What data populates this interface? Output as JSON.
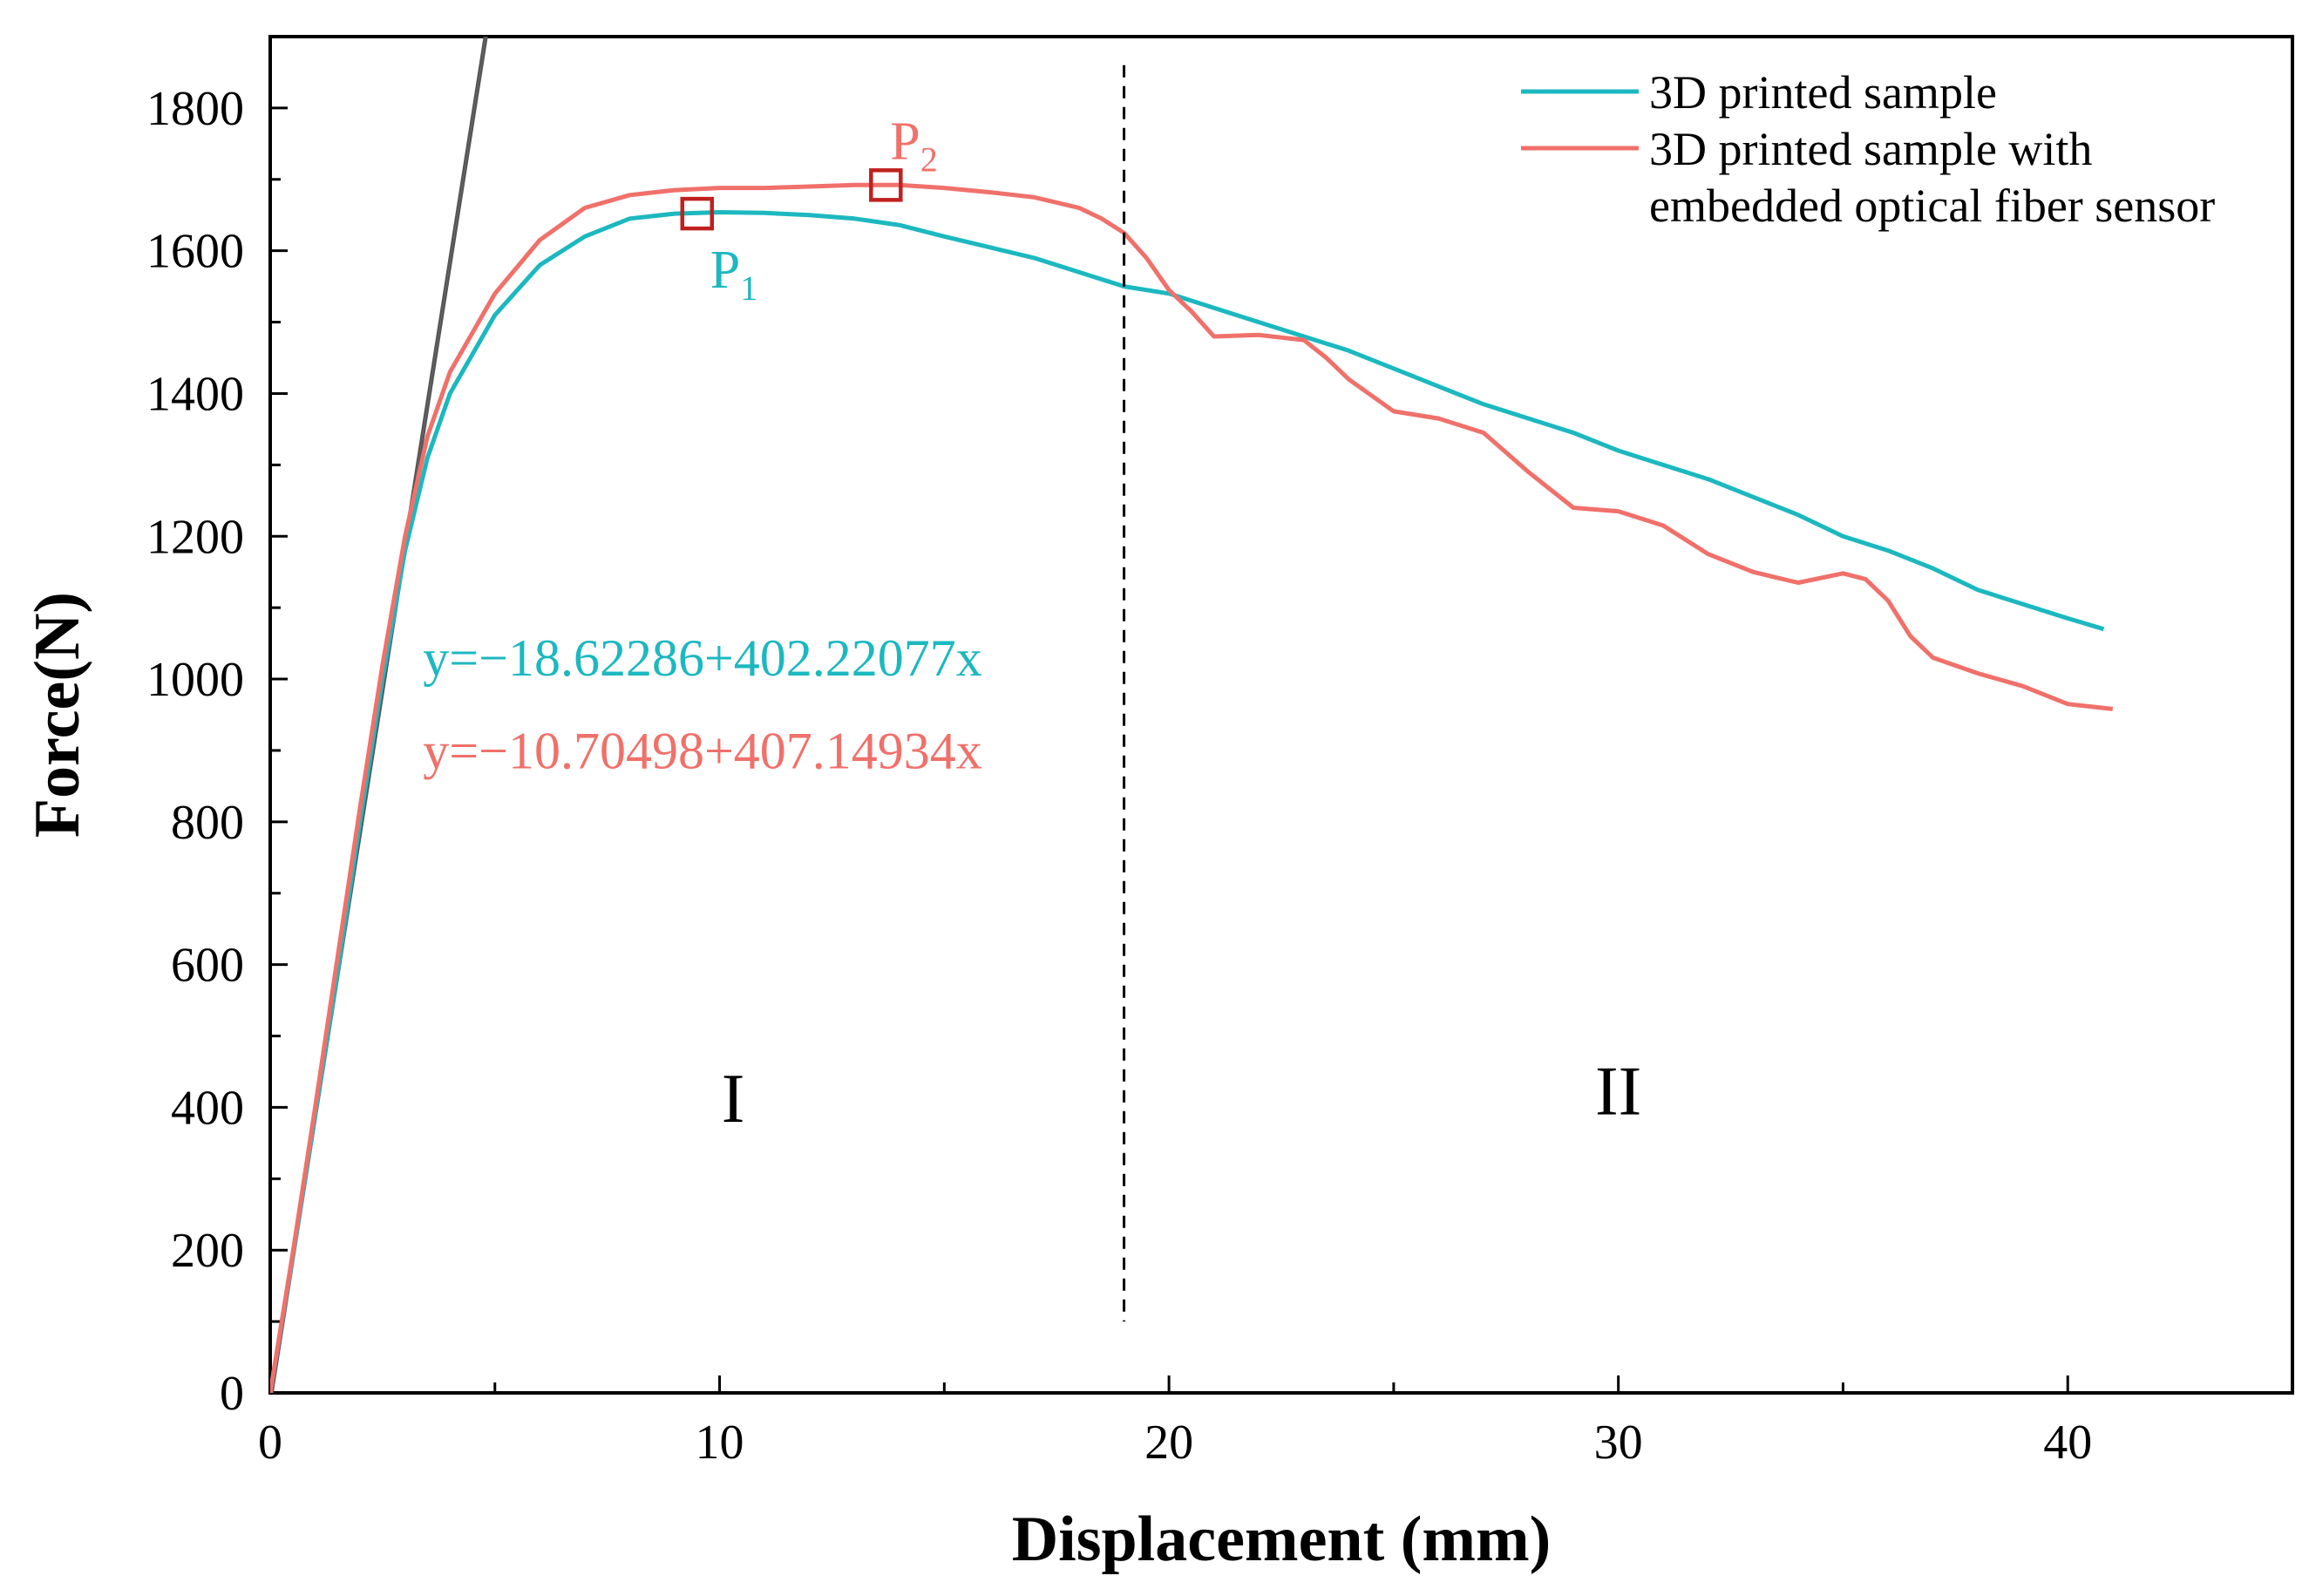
{
  "chart_data": {
    "type": "line",
    "title": "",
    "xlabel": "Displacement (mm)",
    "ylabel": "Force(N)",
    "xlim": [
      0,
      45
    ],
    "ylim": [
      0,
      1900
    ],
    "x_ticks": [
      0,
      10,
      20,
      30,
      40
    ],
    "x_minor_ticks": [
      5,
      15,
      25,
      35
    ],
    "y_ticks": [
      0,
      200,
      400,
      600,
      800,
      1000,
      1200,
      1400,
      1600,
      1800
    ],
    "y_minor_step": 100,
    "legend_position": "top-right",
    "colors": {
      "teal": "#1CB8C0",
      "salmon": "#F0706A",
      "marker": "#C0201E",
      "fit": "#555555"
    },
    "series": [
      {
        "name": "3D printed sample",
        "color": "#1CB8C0",
        "x": [
          0,
          0.5,
          1,
          1.5,
          2,
          2.5,
          3,
          3.5,
          4,
          5,
          6,
          7,
          8,
          9,
          10,
          11,
          12,
          13,
          14,
          15,
          16,
          17,
          18,
          19,
          20,
          21,
          22,
          23,
          24,
          25,
          26,
          27,
          28,
          29,
          30,
          31,
          32,
          33,
          34,
          35,
          36,
          37,
          38,
          39,
          40,
          40.8
        ],
        "y": [
          0,
          190,
          390,
          590,
          800,
          1000,
          1180,
          1310,
          1400,
          1510,
          1580,
          1620,
          1645,
          1652,
          1654,
          1653,
          1650,
          1645,
          1636,
          1620,
          1605,
          1590,
          1570,
          1550,
          1540,
          1520,
          1500,
          1480,
          1460,
          1435,
          1410,
          1385,
          1365,
          1345,
          1320,
          1300,
          1280,
          1255,
          1230,
          1200,
          1180,
          1155,
          1125,
          1105,
          1085,
          1070
        ]
      },
      {
        "name": "3D printed sample with embedded optical fiber sensor",
        "color": "#F0706A",
        "x": [
          0,
          0.5,
          1,
          1.5,
          2,
          2.5,
          3,
          3.5,
          4,
          5,
          6,
          7,
          8,
          9,
          10,
          11,
          12,
          13,
          14,
          15,
          16,
          17,
          18,
          18.5,
          19,
          19.5,
          20,
          20.5,
          21,
          22,
          23,
          23.5,
          24,
          25,
          26,
          27,
          28,
          29,
          30,
          31,
          32,
          33,
          34,
          35,
          35.5,
          36,
          36.5,
          37,
          38,
          39,
          40,
          41
        ],
        "y": [
          0,
          195,
          400,
          610,
          820,
          1020,
          1200,
          1340,
          1430,
          1540,
          1615,
          1660,
          1678,
          1685,
          1688,
          1688,
          1690,
          1692,
          1692,
          1688,
          1682,
          1675,
          1660,
          1645,
          1625,
          1590,
          1545,
          1515,
          1480,
          1482,
          1475,
          1450,
          1420,
          1375,
          1365,
          1345,
          1290,
          1240,
          1235,
          1215,
          1175,
          1150,
          1135,
          1148,
          1140,
          1110,
          1060,
          1030,
          1008,
          990,
          965,
          958
        ]
      }
    ],
    "fit_lines": [
      {
        "name": "linear fit 1",
        "x": [
          0,
          4.77
        ],
        "y": [
          0,
          1900
        ]
      },
      {
        "name": "linear fit 2",
        "x": [
          0.05,
          4.82
        ],
        "y": [
          0,
          1900
        ]
      }
    ],
    "markers": [
      {
        "label": "P",
        "sub": "1",
        "x": 9.5,
        "y": 1652,
        "label_color": "#1CB8C0"
      },
      {
        "label": "P",
        "sub": "2",
        "x": 13.7,
        "y": 1692,
        "label_color": "#F0706A"
      }
    ],
    "divider_x": 19,
    "divider_ymax": 1860,
    "regions": [
      {
        "label": "I",
        "x": 10.3,
        "y": 380
      },
      {
        "label": "II",
        "x": 30,
        "y": 390
      }
    ],
    "equations": [
      {
        "text": "y=−18.62286+402.22077x",
        "color": "#1CB8C0",
        "x": 3.4,
        "y": 1005
      },
      {
        "text": "y=−10.70498+407.14934x",
        "color": "#F0706A",
        "x": 3.4,
        "y": 875
      }
    ]
  }
}
